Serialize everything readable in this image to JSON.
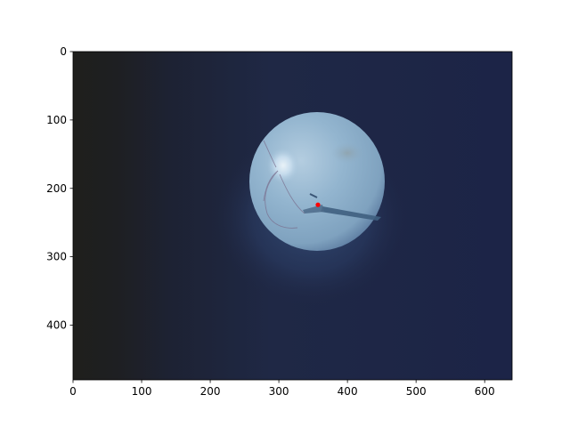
{
  "figure": {
    "background": "#ffffff",
    "image_description_colors": {
      "dark_left": "#1e1e1e",
      "background_blue": "#1e2746",
      "fundus": "#8fb2cc",
      "fundus_highlight": "#c6dced",
      "marker": "#ff0000"
    }
  },
  "chart_data": {
    "type": "image",
    "x_axis": {
      "range": [
        0,
        640
      ],
      "ticks": [
        0,
        100,
        200,
        300,
        400,
        500,
        600
      ]
    },
    "y_axis": {
      "range": [
        0,
        480
      ],
      "inverted": true,
      "ticks": [
        0,
        100,
        200,
        300,
        400
      ]
    },
    "marker": {
      "x": 357,
      "y": 224,
      "color": "#ff0000"
    },
    "title": "",
    "xlabel": "",
    "ylabel": "",
    "grid": false
  }
}
